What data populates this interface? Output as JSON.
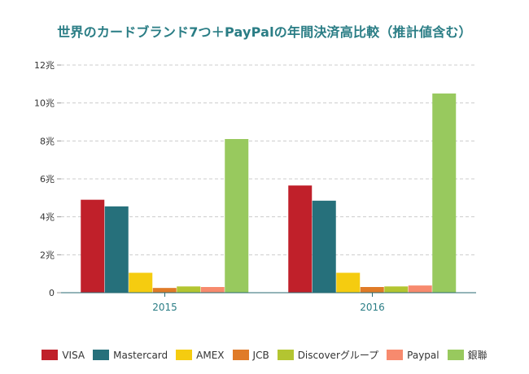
{
  "chart_data": {
    "type": "bar",
    "title": "世界のカードブランド7つ＋PayPalの年間決済高比較（推計値含む）",
    "xlabel": "",
    "ylabel": "",
    "categories": [
      "2015",
      "2016"
    ],
    "ylim": [
      0,
      12
    ],
    "yticks": [
      0,
      2,
      4,
      6,
      8,
      10,
      12
    ],
    "ytick_labels": [
      "0",
      "2兆",
      "4兆",
      "6兆",
      "8兆",
      "10兆",
      "12兆"
    ],
    "grid": true,
    "legend_position": "bottom",
    "series": [
      {
        "name": "VISA",
        "color": "#c0202a",
        "values": [
          4.9,
          5.65
        ]
      },
      {
        "name": "Mastercard",
        "color": "#26707b",
        "values": [
          4.55,
          4.85
        ]
      },
      {
        "name": "AMEX",
        "color": "#f5cc10",
        "values": [
          1.05,
          1.05
        ]
      },
      {
        "name": "JCB",
        "color": "#e07b28",
        "values": [
          0.25,
          0.3
        ]
      },
      {
        "name": "Discoverグループ",
        "color": "#b3c531",
        "values": [
          0.33,
          0.33
        ]
      },
      {
        "name": "Paypal",
        "color": "#f78a6e",
        "values": [
          0.3,
          0.38
        ]
      },
      {
        "name": "銀聯",
        "color": "#98c95e",
        "values": [
          8.1,
          10.5
        ]
      }
    ]
  }
}
